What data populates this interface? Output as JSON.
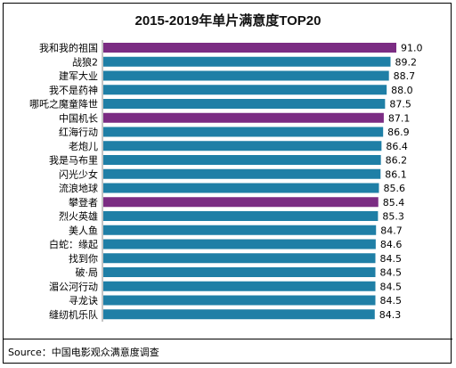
{
  "chart_data": {
    "type": "bar",
    "orientation": "horizontal",
    "title": "2015-2019年单片满意度TOP20",
    "categories": [
      "我和我的祖国",
      "战狼2",
      "建军大业",
      "我不是药神",
      "哪吒之魔童降世",
      "中国机长",
      "红海行动",
      "老炮儿",
      "我是马布里",
      "闪光少女",
      "流浪地球",
      "攀登者",
      "烈火英雄",
      "美人鱼",
      "白蛇：缘起",
      "找到你",
      "破·局",
      "湄公河行动",
      "寻龙诀",
      "缝纫机乐队"
    ],
    "values": [
      91.0,
      89.2,
      88.7,
      88.0,
      87.5,
      87.1,
      86.9,
      86.4,
      86.2,
      86.1,
      85.6,
      85.4,
      85.3,
      84.7,
      84.6,
      84.5,
      84.5,
      84.5,
      84.5,
      84.3
    ],
    "value_labels": [
      "91.0",
      "89.2",
      "88.7",
      "88.0",
      "87.5",
      "87.1",
      "86.9",
      "86.4",
      "86.2",
      "86.1",
      "85.6",
      "85.4",
      "85.3",
      "84.7",
      "84.6",
      "84.5",
      "84.5",
      "84.5",
      "84.5",
      "84.3"
    ],
    "highlighted": [
      true,
      false,
      false,
      false,
      false,
      true,
      false,
      false,
      false,
      false,
      false,
      true,
      false,
      false,
      false,
      false,
      false,
      false,
      false,
      false
    ],
    "colors": {
      "default": "#1f7fa6",
      "highlight": "#7b2c83"
    },
    "xlim": [
      0,
      91
    ],
    "grid": false,
    "legend": false
  },
  "source_text": "Source：中国电影观众满意度调查"
}
